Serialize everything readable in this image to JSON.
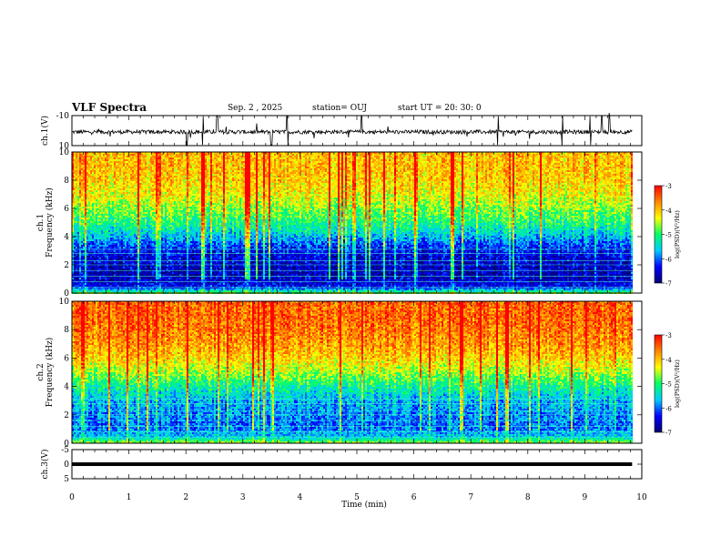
{
  "header": {
    "title": "VLF Spectra",
    "date": "Sep. 2  , 2025",
    "station": "station= OUJ",
    "start": "start  UT =   20: 30: 0"
  },
  "colors": {
    "colormap": [
      "#000070",
      "#0000ff",
      "#00ccff",
      "#00ff66",
      "#ffff00",
      "#ff8800",
      "#ff0000",
      "#ffffff"
    ],
    "trace": "#000000"
  },
  "chart_data": [
    {
      "type": "line",
      "ylabel": "ch.1(V)",
      "ylim": [
        -10,
        10
      ],
      "yticks": [
        "10",
        "-10"
      ],
      "xlim": [
        0,
        10
      ],
      "note_series": "noisy waveform centred near -1 V with spikes to ±10 V",
      "spike_times": [
        2.02,
        2.3,
        2.55,
        3.5,
        3.78,
        5.08,
        7.48,
        8.6,
        9.1,
        9.3,
        9.43
      ],
      "baseline": -0.9
    },
    {
      "type": "heatmap",
      "title": "",
      "ylabel": "ch.1\nFrequency (kHz)",
      "ylim": [
        0,
        10
      ],
      "yticks": [
        "0",
        "2",
        "4",
        "6",
        "8",
        "10"
      ],
      "xlim": [
        0,
        10
      ],
      "data_end_time": 9.83,
      "value_range": [
        -7,
        -3
      ],
      "colorbar_label": "log(PSD)(V²/Hz)",
      "colorbar_ticks": [
        "-3",
        "-4",
        "-5",
        "-6",
        "-7"
      ],
      "profile_khz": [
        0,
        0.5,
        1,
        1.5,
        2,
        2.5,
        3,
        3.5,
        4,
        5,
        6,
        7,
        8,
        9,
        10
      ],
      "profile_log_psd": [
        -4.6,
        -6.4,
        -6.6,
        -6.7,
        -6.6,
        -6.5,
        -6.4,
        -6.1,
        -5.7,
        -5.1,
        -4.7,
        -4.3,
        -4.1,
        -4.0,
        -4.0
      ]
    },
    {
      "type": "heatmap",
      "title": "",
      "ylabel": "ch.2\nFrequency (kHz)",
      "ylim": [
        0,
        10
      ],
      "yticks": [
        "0",
        "2",
        "4",
        "6",
        "8",
        "10"
      ],
      "xlim": [
        0,
        10
      ],
      "data_end_time": 9.83,
      "value_range": [
        -7,
        -3
      ],
      "colorbar_label": "log(PSD)(V²/Hz)",
      "colorbar_ticks": [
        "-3",
        "-4",
        "-5",
        "-6",
        "-7"
      ],
      "profile_khz": [
        0,
        0.5,
        1,
        1.5,
        2,
        2.5,
        3,
        3.5,
        4,
        5,
        6,
        7,
        8,
        9,
        10
      ],
      "profile_log_psd": [
        -4.4,
        -5.6,
        -5.9,
        -6.0,
        -5.9,
        -5.8,
        -5.7,
        -5.5,
        -5.2,
        -4.6,
        -4.1,
        -3.8,
        -3.6,
        -3.5,
        -3.5
      ]
    },
    {
      "type": "line",
      "ylabel": "ch.3(V)",
      "ylim": [
        -5,
        5
      ],
      "yticks": [
        "5",
        "0",
        "-5"
      ],
      "xlim": [
        0,
        10
      ],
      "data_end_time": 9.83,
      "constant_value": 0,
      "xlabel": "Time  (min)",
      "xticks": [
        "0",
        "1",
        "2",
        "3",
        "4",
        "5",
        "6",
        "7",
        "8",
        "9",
        "10"
      ]
    }
  ]
}
